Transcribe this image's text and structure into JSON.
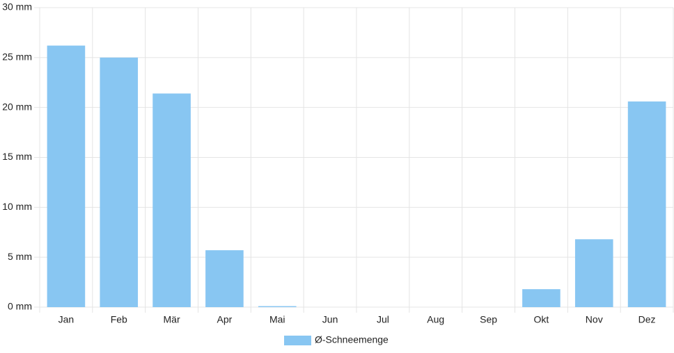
{
  "chart_data": {
    "type": "bar",
    "categories": [
      "Jan",
      "Feb",
      "Mär",
      "Apr",
      "Mai",
      "Jun",
      "Jul",
      "Aug",
      "Sep",
      "Okt",
      "Nov",
      "Dez"
    ],
    "series": [
      {
        "name": "Ø-Schneemenge",
        "color": "#88c6f2",
        "values": [
          26.2,
          25.0,
          21.4,
          5.7,
          0.1,
          0,
          0,
          0,
          0,
          1.8,
          6.8,
          20.6
        ]
      }
    ],
    "ylim": [
      0,
      30
    ],
    "yticks": [
      {
        "value": 0,
        "label": "0 mm"
      },
      {
        "value": 5,
        "label": "5 mm"
      },
      {
        "value": 10,
        "label": "10 mm"
      },
      {
        "value": 15,
        "label": "15 mm"
      },
      {
        "value": 20,
        "label": "20 mm"
      },
      {
        "value": 25,
        "label": "25 mm"
      },
      {
        "value": 30,
        "label": "30 mm"
      }
    ],
    "grid": true,
    "legend": "bottom"
  }
}
